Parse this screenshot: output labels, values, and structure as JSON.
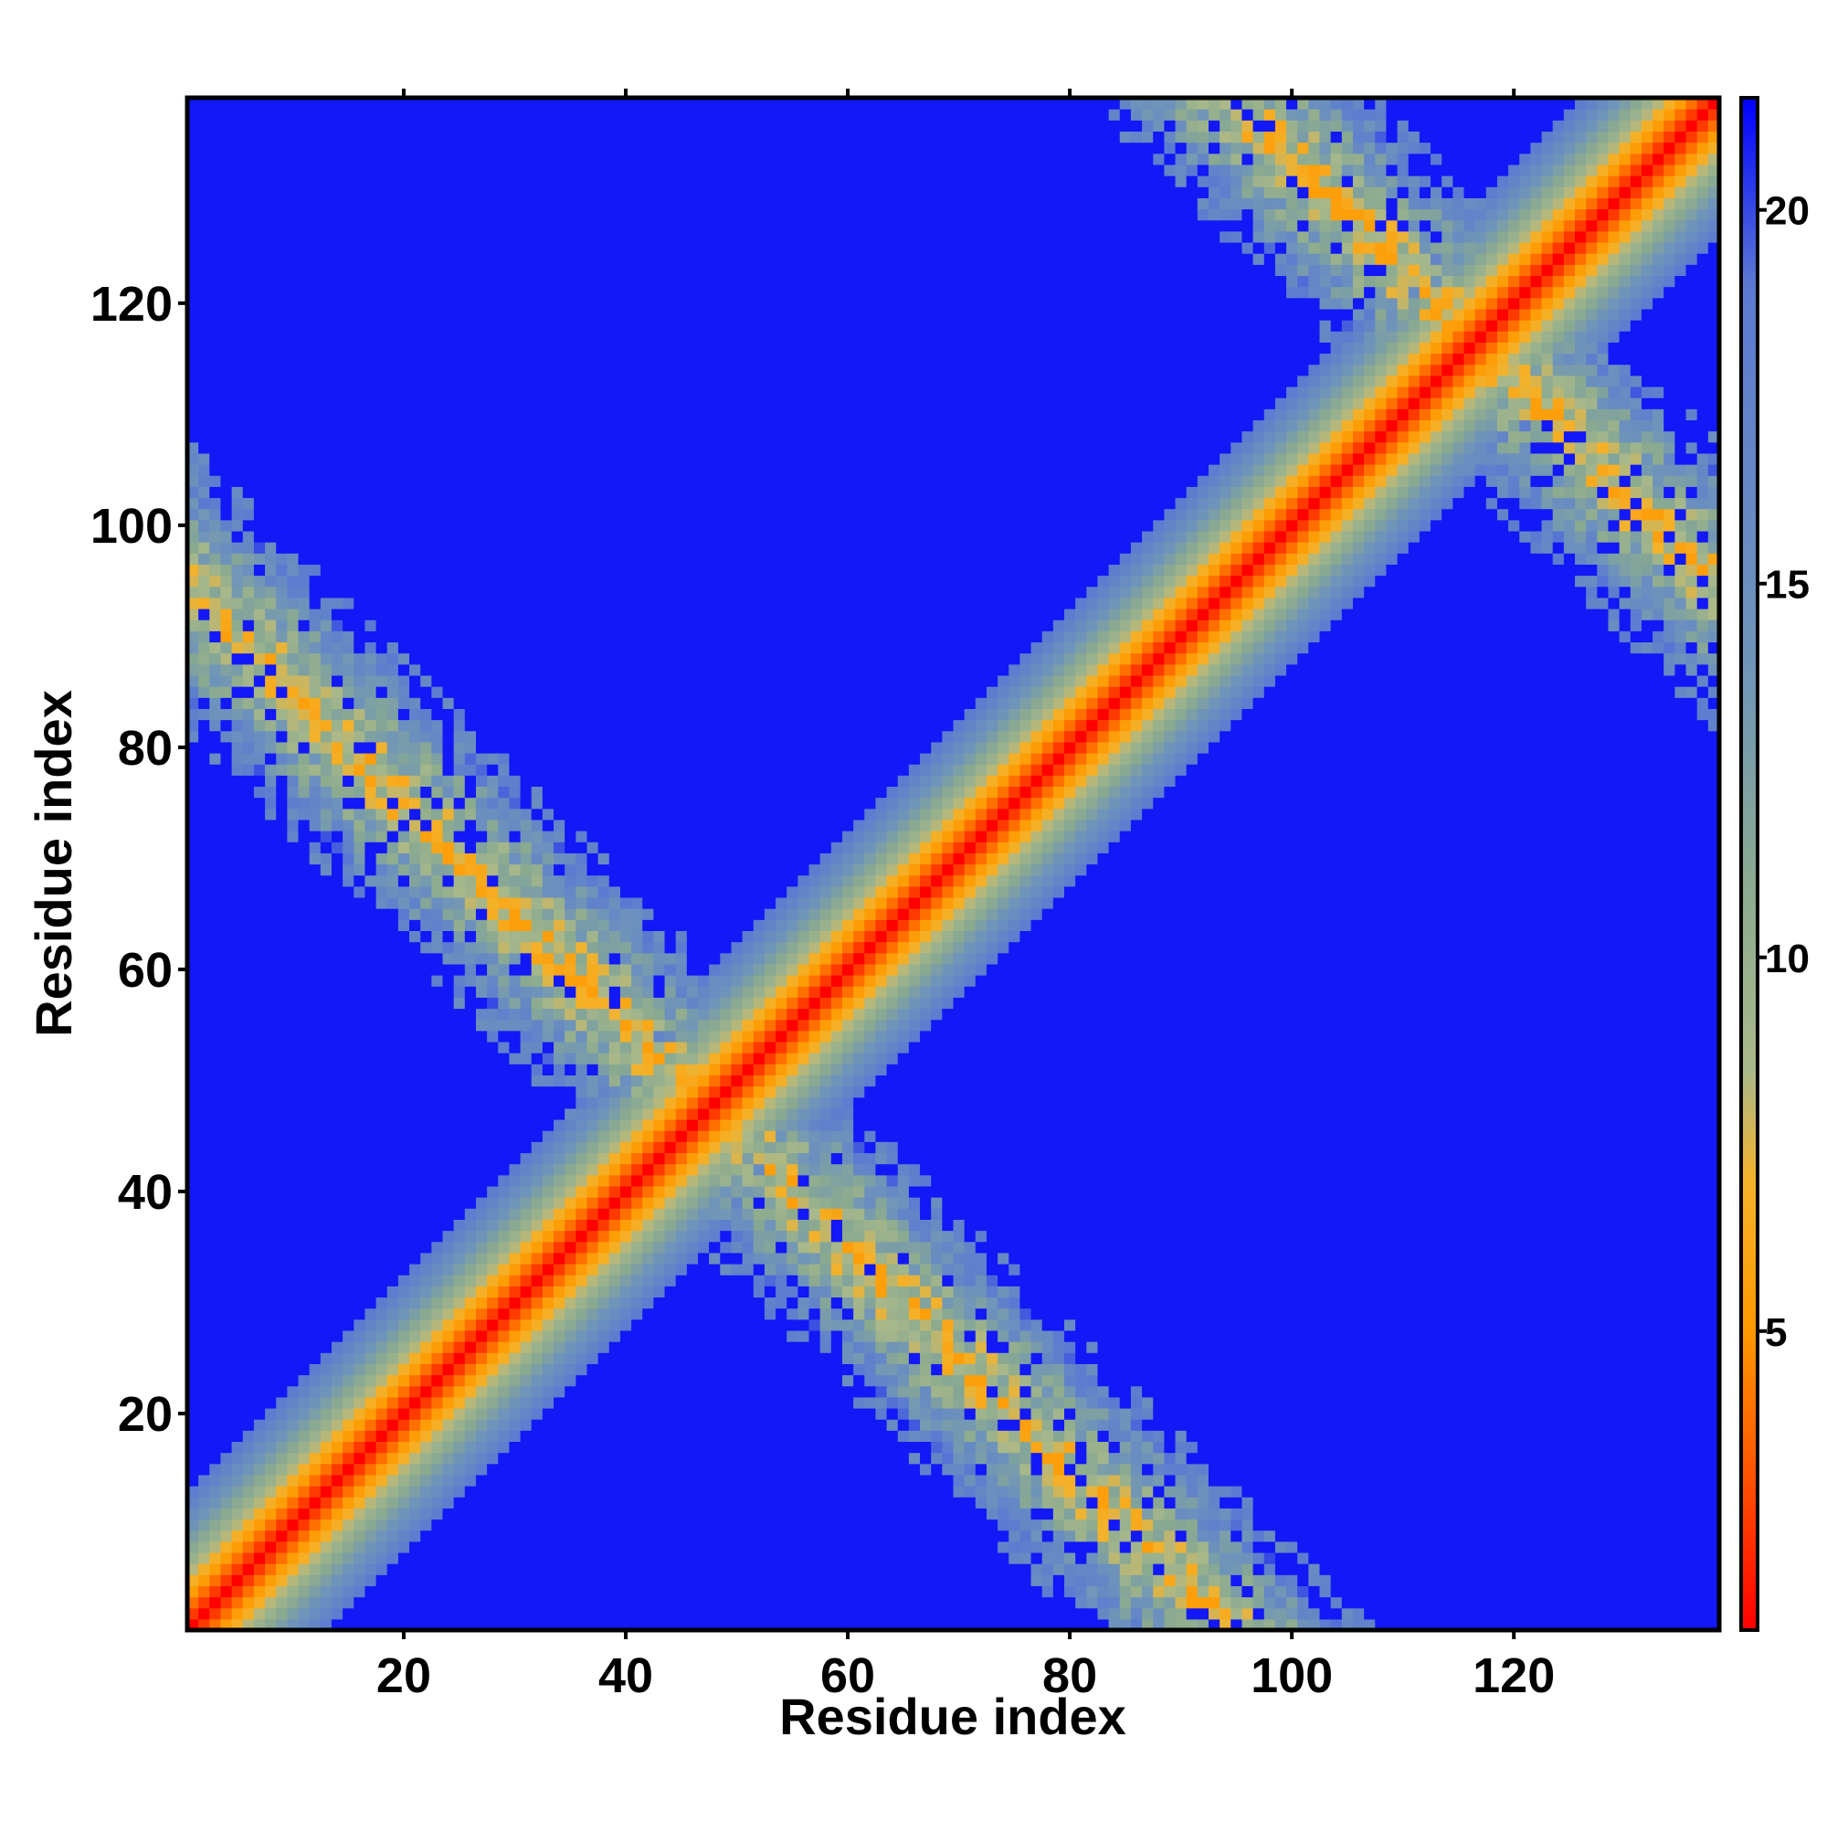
{
  "chart_data": {
    "type": "heatmap",
    "title": "",
    "xlabel": "Residue index",
    "ylabel": "Residue index",
    "n_residues": 138,
    "xlim": [
      1,
      138
    ],
    "ylim": [
      1,
      138
    ],
    "x_ticks": [
      20,
      40,
      60,
      80,
      100,
      120
    ],
    "y_ticks": [
      20,
      40,
      60,
      80,
      100,
      120
    ],
    "colorbar": {
      "ticks": [
        5,
        10,
        15,
        20
      ],
      "range": [
        1,
        21.5
      ],
      "colors": [
        "#ff0000",
        "#ff5000",
        "#ff9800",
        "#f4b22a",
        "#a9b88a",
        "#8aaa90",
        "#6f94ba",
        "#5a7ad2",
        "#0000ff"
      ],
      "color_stops": [
        1,
        3,
        5,
        7,
        8.5,
        11,
        14,
        19,
        21.5
      ]
    },
    "description_values": {
      "diagonal_distance": 1,
      "background_distance": 21,
      "antidiagonal_center_sum": 95,
      "antidiagonal_wrap_sum": 233,
      "antidiagonal_half_width_residues": 10,
      "diagonal_band_half_width_residues": 12
    },
    "legend": "right colorbar",
    "grid": false
  }
}
